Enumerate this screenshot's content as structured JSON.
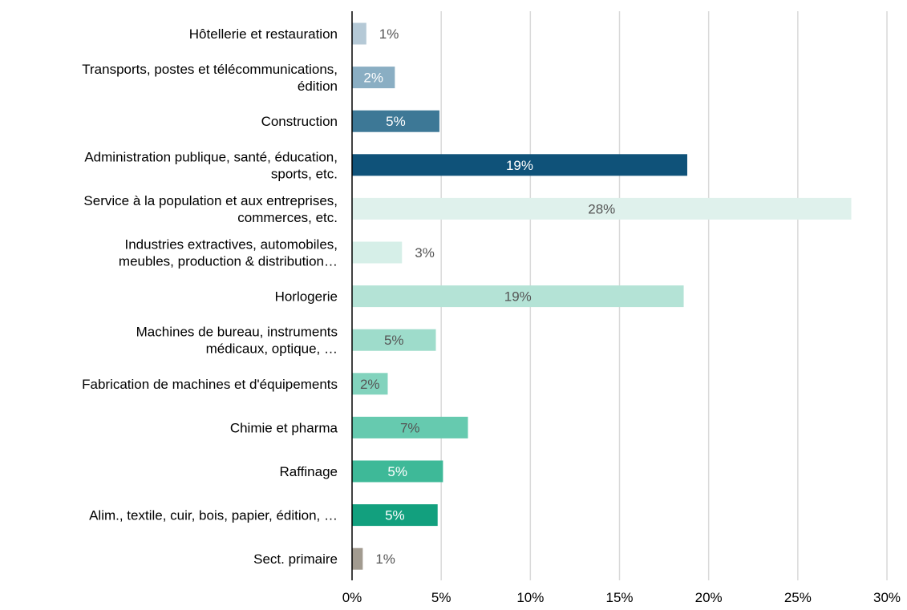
{
  "chart_data": {
    "type": "bar",
    "orientation": "horizontal",
    "title": "",
    "xlabel": "",
    "ylabel": "",
    "xlim": [
      0,
      30
    ],
    "x_ticks": [
      0,
      5,
      10,
      15,
      20,
      25,
      30
    ],
    "x_tick_labels": [
      "0%",
      "5%",
      "10%",
      "15%",
      "20%",
      "25%",
      "30%"
    ],
    "grid": "vertical",
    "legend": "none",
    "categories": [
      "Hôtellerie et restauration",
      "Transports, postes et télécommunications, édition",
      "Construction",
      "Administration publique, santé, éducation, sports, etc.",
      "Service à la population et aux entreprises, commerces, etc.",
      "Industries extractives, automobiles, meubles, production & distribution…",
      "Horlogerie",
      "Machines de bureau, instruments médicaux, optique, …",
      "Fabrication de machines et d'équipements",
      "Chimie et pharma",
      "Raffinage",
      "Alim., textile, cuir, bois, papier, édition, …",
      "Sect. primaire"
    ],
    "label_lines": [
      [
        "Hôtellerie et restauration"
      ],
      [
        "Transports, postes et télécommunications,",
        "édition"
      ],
      [
        "Construction"
      ],
      [
        "Administration publique, santé, éducation,",
        "sports, etc."
      ],
      [
        "Service à la population et aux entreprises,",
        "commerces, etc."
      ],
      [
        "Industries extractives, automobiles,",
        "meubles, production & distribution…"
      ],
      [
        "Horlogerie"
      ],
      [
        "Machines de bureau, instruments",
        "médicaux, optique, …"
      ],
      [
        "Fabrication de machines et d'équipements"
      ],
      [
        "Chimie et pharma"
      ],
      [
        "Raffinage"
      ],
      [
        "Alim., textile, cuir, bois, papier, édition, …"
      ],
      [
        "Sect. primaire"
      ]
    ],
    "values": [
      0.8,
      2.4,
      4.9,
      18.8,
      28.0,
      2.8,
      18.6,
      4.7,
      2.0,
      6.5,
      5.1,
      4.8,
      0.6
    ],
    "data_labels": [
      "1%",
      "2%",
      "5%",
      "19%",
      "28%",
      "3%",
      "19%",
      "5%",
      "2%",
      "7%",
      "5%",
      "5%",
      "1%"
    ],
    "colors": [
      "#b5c9d6",
      "#8aaec3",
      "#3d7896",
      "#0f5279",
      "#dff1ec",
      "#d6efe8",
      "#b4e3d6",
      "#9edccb",
      "#82d3bd",
      "#66caaf",
      "#3eb998",
      "#12a07e",
      "#a29b90"
    ],
    "label_colors": [
      "#555555",
      "#ffffff",
      "#ffffff",
      "#ffffff",
      "#555555",
      "#555555",
      "#555555",
      "#555555",
      "#555555",
      "#555555",
      "#ffffff",
      "#ffffff",
      "#555555"
    ],
    "label_position": [
      "outside",
      "inside",
      "inside",
      "inside",
      "inside",
      "outside",
      "inside",
      "inside",
      "inside",
      "inside",
      "inside",
      "inside",
      "outside"
    ],
    "axis_color": "#000000",
    "grid_color": "#d9d9d9"
  }
}
